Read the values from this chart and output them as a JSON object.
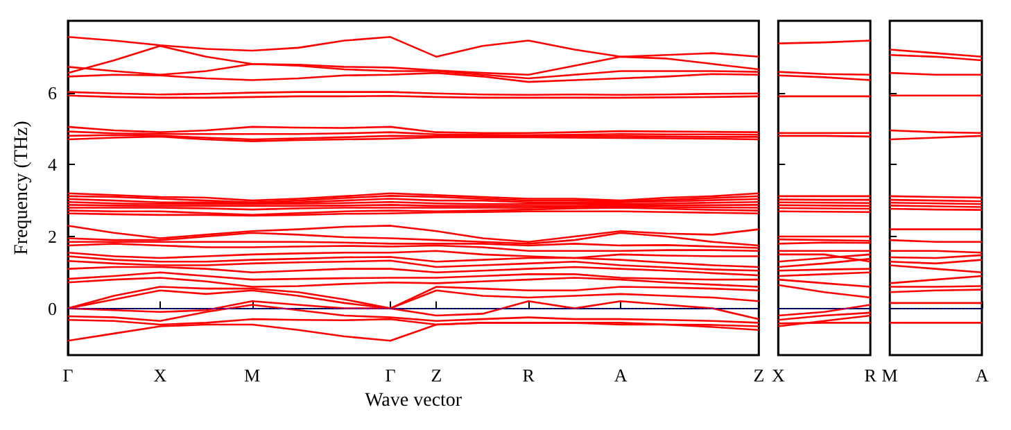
{
  "chart_data": [
    {
      "type": "line",
      "xlabel": "Wave vector",
      "ylabel": "Frequency (THz)",
      "categories": [
        "Γ",
        null,
        "X",
        null,
        "M",
        null,
        null,
        "Γ",
        "Z",
        null,
        "R",
        null,
        "A",
        null,
        null,
        "Z"
      ],
      "ylim": [
        -1.3,
        8.0
      ],
      "yticks": [
        0,
        2,
        4,
        6
      ],
      "ref_lines": [
        {
          "axis": "y",
          "value": 0,
          "color": "#0000ff",
          "line_style": "dotted"
        }
      ],
      "series": [
        {
          "color": "#ff0000",
          "values": [
            7.55,
            7.45,
            7.32,
            7.22,
            7.17,
            7.25,
            7.45,
            7.55,
            7.0,
            7.3,
            7.45,
            7.2,
            7.0,
            7.05,
            7.1,
            7.0
          ]
        },
        {
          "color": "#ff0000",
          "values": [
            6.55,
            6.9,
            7.3,
            7.0,
            6.8,
            6.78,
            6.72,
            6.7,
            6.62,
            6.55,
            6.5,
            6.75,
            7.0,
            6.95,
            6.8,
            6.65
          ]
        },
        {
          "color": "#ff0000",
          "values": [
            6.72,
            6.6,
            6.5,
            6.6,
            6.8,
            6.75,
            6.65,
            6.6,
            6.6,
            6.5,
            6.4,
            6.5,
            6.6,
            6.6,
            6.6,
            6.58
          ]
        },
        {
          "color": "#ff0000",
          "values": [
            6.45,
            6.5,
            6.48,
            6.4,
            6.35,
            6.4,
            6.48,
            6.5,
            6.55,
            6.45,
            6.3,
            6.35,
            6.4,
            6.45,
            6.52,
            6.5
          ]
        },
        {
          "color": "#ff0000",
          "values": [
            6.02,
            5.98,
            5.95,
            5.97,
            6.0,
            6.02,
            6.02,
            6.02,
            5.98,
            5.95,
            5.94,
            5.95,
            5.94,
            5.95,
            5.97,
            5.98
          ]
        },
        {
          "color": "#ff0000",
          "values": [
            5.92,
            5.88,
            5.86,
            5.86,
            5.88,
            5.9,
            5.9,
            5.91,
            5.88,
            5.86,
            5.86,
            5.86,
            5.86,
            5.87,
            5.88,
            5.9
          ]
        },
        {
          "color": "#ff0000",
          "values": [
            5.05,
            4.95,
            4.9,
            4.95,
            5.05,
            5.03,
            5.02,
            5.05,
            4.9,
            4.88,
            4.88,
            4.9,
            4.93,
            4.92,
            4.91,
            4.9
          ]
        },
        {
          "color": "#ff0000",
          "values": [
            4.92,
            4.87,
            4.85,
            4.85,
            4.85,
            4.85,
            4.87,
            4.9,
            4.84,
            4.83,
            4.82,
            4.83,
            4.85,
            4.84,
            4.84,
            4.83
          ]
        },
        {
          "color": "#ff0000",
          "values": [
            4.8,
            4.82,
            4.8,
            4.75,
            4.7,
            4.73,
            4.76,
            4.8,
            4.79,
            4.79,
            4.79,
            4.79,
            4.79,
            4.78,
            4.77,
            4.77
          ]
        },
        {
          "color": "#ff0000",
          "values": [
            4.7,
            4.75,
            4.78,
            4.7,
            4.65,
            4.68,
            4.7,
            4.72,
            4.76,
            4.76,
            4.76,
            4.75,
            4.74,
            4.73,
            4.72,
            4.7
          ]
        },
        {
          "color": "#ff0000",
          "values": [
            3.2,
            3.15,
            3.1,
            3.08,
            3.0,
            3.05,
            3.12,
            3.2,
            3.15,
            3.1,
            3.05,
            3.05,
            3.0,
            3.08,
            3.12,
            3.2
          ]
        },
        {
          "color": "#ff0000",
          "values": [
            3.12,
            3.1,
            3.05,
            3.0,
            2.95,
            3.0,
            3.07,
            3.13,
            3.1,
            3.05,
            3.0,
            3.0,
            2.98,
            3.02,
            3.07,
            3.12
          ]
        },
        {
          "color": "#ff0000",
          "values": [
            3.04,
            3.0,
            2.95,
            2.95,
            2.92,
            2.95,
            3.0,
            3.05,
            3.0,
            3.0,
            2.95,
            2.95,
            2.95,
            2.98,
            3.01,
            3.04
          ]
        },
        {
          "color": "#ff0000",
          "values": [
            2.96,
            2.92,
            2.9,
            2.9,
            2.9,
            2.91,
            2.93,
            2.96,
            2.92,
            2.9,
            2.9,
            2.9,
            2.9,
            2.92,
            2.94,
            2.96
          ]
        },
        {
          "color": "#ff0000",
          "values": [
            2.88,
            2.86,
            2.85,
            2.85,
            2.85,
            2.85,
            2.86,
            2.88,
            2.85,
            2.85,
            2.85,
            2.85,
            2.88,
            2.87,
            2.87,
            2.88
          ]
        },
        {
          "color": "#ff0000",
          "values": [
            2.8,
            2.8,
            2.8,
            2.78,
            2.75,
            2.78,
            2.8,
            2.8,
            2.8,
            2.8,
            2.8,
            2.82,
            2.84,
            2.82,
            2.81,
            2.8
          ]
        },
        {
          "color": "#ff0000",
          "values": [
            2.72,
            2.7,
            2.7,
            2.65,
            2.6,
            2.65,
            2.7,
            2.72,
            2.7,
            2.72,
            2.75,
            2.78,
            2.8,
            2.77,
            2.74,
            2.72
          ]
        },
        {
          "color": "#ff0000",
          "values": [
            2.64,
            2.62,
            2.6,
            2.6,
            2.58,
            2.6,
            2.63,
            2.64,
            2.67,
            2.68,
            2.7,
            2.7,
            2.7,
            2.68,
            2.66,
            2.64
          ]
        },
        {
          "color": "#ff0000",
          "values": [
            2.3,
            2.1,
            1.95,
            2.05,
            2.15,
            2.2,
            2.27,
            2.3,
            2.15,
            1.95,
            1.85,
            2.0,
            2.15,
            2.08,
            2.05,
            2.2
          ]
        },
        {
          "color": "#ff0000",
          "values": [
            1.95,
            1.9,
            1.9,
            2.0,
            2.1,
            2.05,
            1.98,
            1.95,
            1.9,
            1.85,
            1.8,
            1.9,
            2.1,
            2.0,
            1.85,
            1.75
          ]
        },
        {
          "color": "#ff0000",
          "values": [
            1.85,
            1.85,
            1.85,
            1.85,
            1.85,
            1.85,
            1.83,
            1.8,
            1.8,
            1.8,
            1.75,
            1.8,
            1.75,
            1.76,
            1.72,
            1.68
          ]
        },
        {
          "color": "#ff0000",
          "values": [
            1.75,
            1.8,
            1.75,
            1.7,
            1.7,
            1.72,
            1.74,
            1.72,
            1.75,
            1.7,
            1.6,
            1.6,
            1.6,
            1.62,
            1.62,
            1.6
          ]
        },
        {
          "color": "#ff0000",
          "values": [
            1.55,
            1.45,
            1.4,
            1.45,
            1.5,
            1.53,
            1.55,
            1.55,
            1.6,
            1.5,
            1.45,
            1.4,
            1.5,
            1.47,
            1.45,
            1.45
          ]
        },
        {
          "color": "#ff0000",
          "values": [
            1.45,
            1.35,
            1.3,
            1.3,
            1.35,
            1.38,
            1.42,
            1.43,
            1.3,
            1.35,
            1.4,
            1.4,
            1.35,
            1.27,
            1.2,
            1.15
          ]
        },
        {
          "color": "#ff0000",
          "values": [
            1.32,
            1.25,
            1.2,
            1.2,
            1.25,
            1.28,
            1.3,
            1.33,
            1.15,
            1.2,
            1.25,
            1.3,
            1.2,
            1.14,
            1.08,
            1.05
          ]
        },
        {
          "color": "#ff0000",
          "values": [
            1.1,
            1.15,
            1.15,
            1.1,
            1.0,
            1.05,
            1.1,
            1.1,
            1.0,
            1.05,
            1.1,
            1.15,
            1.1,
            1.05,
            0.98,
            0.92
          ]
        },
        {
          "color": "#ff0000",
          "values": [
            0.82,
            0.9,
            1.0,
            0.9,
            0.8,
            0.82,
            0.84,
            0.85,
            0.85,
            0.9,
            0.95,
            0.95,
            0.85,
            0.82,
            0.8,
            0.8
          ]
        },
        {
          "color": "#ff0000",
          "values": [
            0.72,
            0.8,
            0.85,
            0.75,
            0.6,
            0.62,
            0.68,
            0.72,
            0.7,
            0.75,
            0.8,
            0.85,
            0.8,
            0.72,
            0.66,
            0.6
          ]
        },
        {
          "color": "#ff0000",
          "values": [
            0.0,
            0.35,
            0.6,
            0.55,
            0.55,
            0.45,
            0.25,
            0.0,
            0.6,
            0.55,
            0.5,
            0.5,
            0.6,
            0.58,
            0.55,
            0.5
          ]
        },
        {
          "color": "#ff0000",
          "values": [
            0.0,
            0.25,
            0.5,
            0.4,
            0.5,
            0.35,
            0.15,
            0.0,
            0.5,
            0.35,
            0.3,
            0.35,
            0.4,
            0.35,
            0.3,
            0.2
          ]
        },
        {
          "color": "#ff0000",
          "values": [
            0.0,
            -0.05,
            -0.1,
            -0.05,
            0.2,
            0.1,
            0.0,
            0.0,
            -0.2,
            -0.15,
            0.2,
            0.0,
            0.2,
            0.1,
            0.0,
            -0.3
          ]
        },
        {
          "color": "#ff0000",
          "values": [
            -0.22,
            -0.25,
            -0.35,
            -0.1,
            0.1,
            -0.05,
            -0.2,
            -0.25,
            -0.35,
            -0.3,
            -0.25,
            -0.3,
            -0.3,
            -0.32,
            -0.35,
            -0.4
          ]
        },
        {
          "color": "#ff0000",
          "values": [
            -0.32,
            -0.35,
            -0.45,
            -0.4,
            -0.3,
            -0.32,
            -0.33,
            -0.3,
            -0.45,
            -0.4,
            -0.4,
            -0.4,
            -0.45,
            -0.45,
            -0.46,
            -0.5
          ]
        },
        {
          "color": "#ff0000",
          "values": [
            -0.9,
            -0.7,
            -0.5,
            -0.45,
            -0.45,
            -0.6,
            -0.78,
            -0.9,
            -0.45,
            -0.4,
            -0.4,
            -0.4,
            -0.4,
            -0.45,
            -0.52,
            -0.6
          ]
        }
      ]
    },
    {
      "type": "line",
      "categories": [
        "X",
        null,
        "R"
      ],
      "ylim": [
        -1.3,
        8.0
      ],
      "yticks": [
        0,
        2,
        4,
        6
      ],
      "tick_labels": "x",
      "ref_lines": [
        {
          "axis": "y",
          "value": 0,
          "color": "#0000ff",
          "line_style": "dotted"
        }
      ],
      "series": [
        {
          "color": "#ff0000",
          "values": [
            7.37,
            7.4,
            7.45
          ]
        },
        {
          "color": "#ff0000",
          "values": [
            6.58,
            6.52,
            6.5
          ]
        },
        {
          "color": "#ff0000",
          "values": [
            6.48,
            6.43,
            6.35
          ]
        },
        {
          "color": "#ff0000",
          "values": [
            5.9,
            5.9,
            5.9
          ]
        },
        {
          "color": "#ff0000",
          "values": [
            4.88,
            4.88,
            4.88
          ]
        },
        {
          "color": "#ff0000",
          "values": [
            4.8,
            4.8,
            4.78
          ]
        },
        {
          "color": "#ff0000",
          "values": [
            3.12,
            3.12,
            3.12
          ]
        },
        {
          "color": "#ff0000",
          "values": [
            3.03,
            3.02,
            3.02
          ]
        },
        {
          "color": "#ff0000",
          "values": [
            2.95,
            2.94,
            2.93
          ]
        },
        {
          "color": "#ff0000",
          "values": [
            2.87,
            2.86,
            2.85
          ]
        },
        {
          "color": "#ff0000",
          "values": [
            2.79,
            2.78,
            2.77
          ]
        },
        {
          "color": "#ff0000",
          "values": [
            2.7,
            2.69,
            2.68
          ]
        },
        {
          "color": "#ff0000",
          "values": [
            2.0,
            2.0,
            2.0
          ]
        },
        {
          "color": "#ff0000",
          "values": [
            1.92,
            1.9,
            1.88
          ]
        },
        {
          "color": "#ff0000",
          "values": [
            1.8,
            1.83,
            1.82
          ]
        },
        {
          "color": "#ff0000",
          "values": [
            1.6,
            1.6,
            1.6
          ]
        },
        {
          "color": "#ff0000",
          "values": [
            1.5,
            1.5,
            1.3
          ]
        },
        {
          "color": "#ff0000",
          "values": [
            1.3,
            1.4,
            1.5
          ]
        },
        {
          "color": "#ff0000",
          "values": [
            1.15,
            1.25,
            1.38
          ]
        },
        {
          "color": "#ff0000",
          "values": [
            1.05,
            1.08,
            1.1
          ]
        },
        {
          "color": "#ff0000",
          "values": [
            0.9,
            0.95,
            1.0
          ]
        },
        {
          "color": "#ff0000",
          "values": [
            0.8,
            0.7,
            0.6
          ]
        },
        {
          "color": "#ff0000",
          "values": [
            0.65,
            0.45,
            0.3
          ]
        },
        {
          "color": "#ff0000",
          "values": [
            -0.2,
            -0.1,
            0.1
          ]
        },
        {
          "color": "#ff0000",
          "values": [
            -0.32,
            -0.2,
            -0.12
          ]
        },
        {
          "color": "#ff0000",
          "values": [
            -0.5,
            -0.35,
            -0.2
          ]
        },
        {
          "color": "#ff0000",
          "values": [
            -0.42,
            -0.4,
            -0.4
          ]
        }
      ]
    },
    {
      "type": "line",
      "categories": [
        "M",
        null,
        "A"
      ],
      "ylim": [
        -1.3,
        8.0
      ],
      "yticks": [
        0,
        2,
        4,
        6
      ],
      "tick_labels": "x",
      "ref_lines": [
        {
          "axis": "y",
          "value": 0,
          "color": "#0000ff",
          "line_style": "dotted"
        }
      ],
      "series": [
        {
          "color": "#ff0000",
          "values": [
            7.2,
            7.1,
            7.0
          ]
        },
        {
          "color": "#ff0000",
          "values": [
            7.05,
            7.0,
            6.9
          ]
        },
        {
          "color": "#ff0000",
          "values": [
            6.55,
            6.5,
            6.5
          ]
        },
        {
          "color": "#ff0000",
          "values": [
            5.92,
            5.92,
            5.92
          ]
        },
        {
          "color": "#ff0000",
          "values": [
            4.95,
            4.9,
            4.88
          ]
        },
        {
          "color": "#ff0000",
          "values": [
            4.7,
            4.75,
            4.8
          ]
        },
        {
          "color": "#ff0000",
          "values": [
            3.12,
            3.1,
            3.08
          ]
        },
        {
          "color": "#ff0000",
          "values": [
            3.02,
            3.0,
            2.98
          ]
        },
        {
          "color": "#ff0000",
          "values": [
            2.94,
            2.92,
            2.9
          ]
        },
        {
          "color": "#ff0000",
          "values": [
            2.86,
            2.84,
            2.82
          ]
        },
        {
          "color": "#ff0000",
          "values": [
            2.77,
            2.75,
            2.74
          ]
        },
        {
          "color": "#ff0000",
          "values": [
            2.2,
            2.2,
            2.2
          ]
        },
        {
          "color": "#ff0000",
          "values": [
            1.9,
            1.85,
            1.85
          ]
        },
        {
          "color": "#ff0000",
          "values": [
            1.6,
            1.6,
            1.55
          ]
        },
        {
          "color": "#ff0000",
          "values": [
            1.42,
            1.4,
            1.48
          ]
        },
        {
          "color": "#ff0000",
          "values": [
            1.3,
            1.25,
            1.35
          ]
        },
        {
          "color": "#ff0000",
          "values": [
            1.2,
            1.1,
            1.0
          ]
        },
        {
          "color": "#ff0000",
          "values": [
            0.7,
            0.8,
            0.9
          ]
        },
        {
          "color": "#ff0000",
          "values": [
            0.6,
            0.6,
            0.62
          ]
        },
        {
          "color": "#ff0000",
          "values": [
            0.45,
            0.5,
            0.52
          ]
        },
        {
          "color": "#ff0000",
          "values": [
            0.15,
            0.15,
            0.15
          ]
        },
        {
          "color": "#ff0000",
          "values": [
            -0.4,
            -0.4,
            -0.4
          ]
        }
      ]
    }
  ]
}
